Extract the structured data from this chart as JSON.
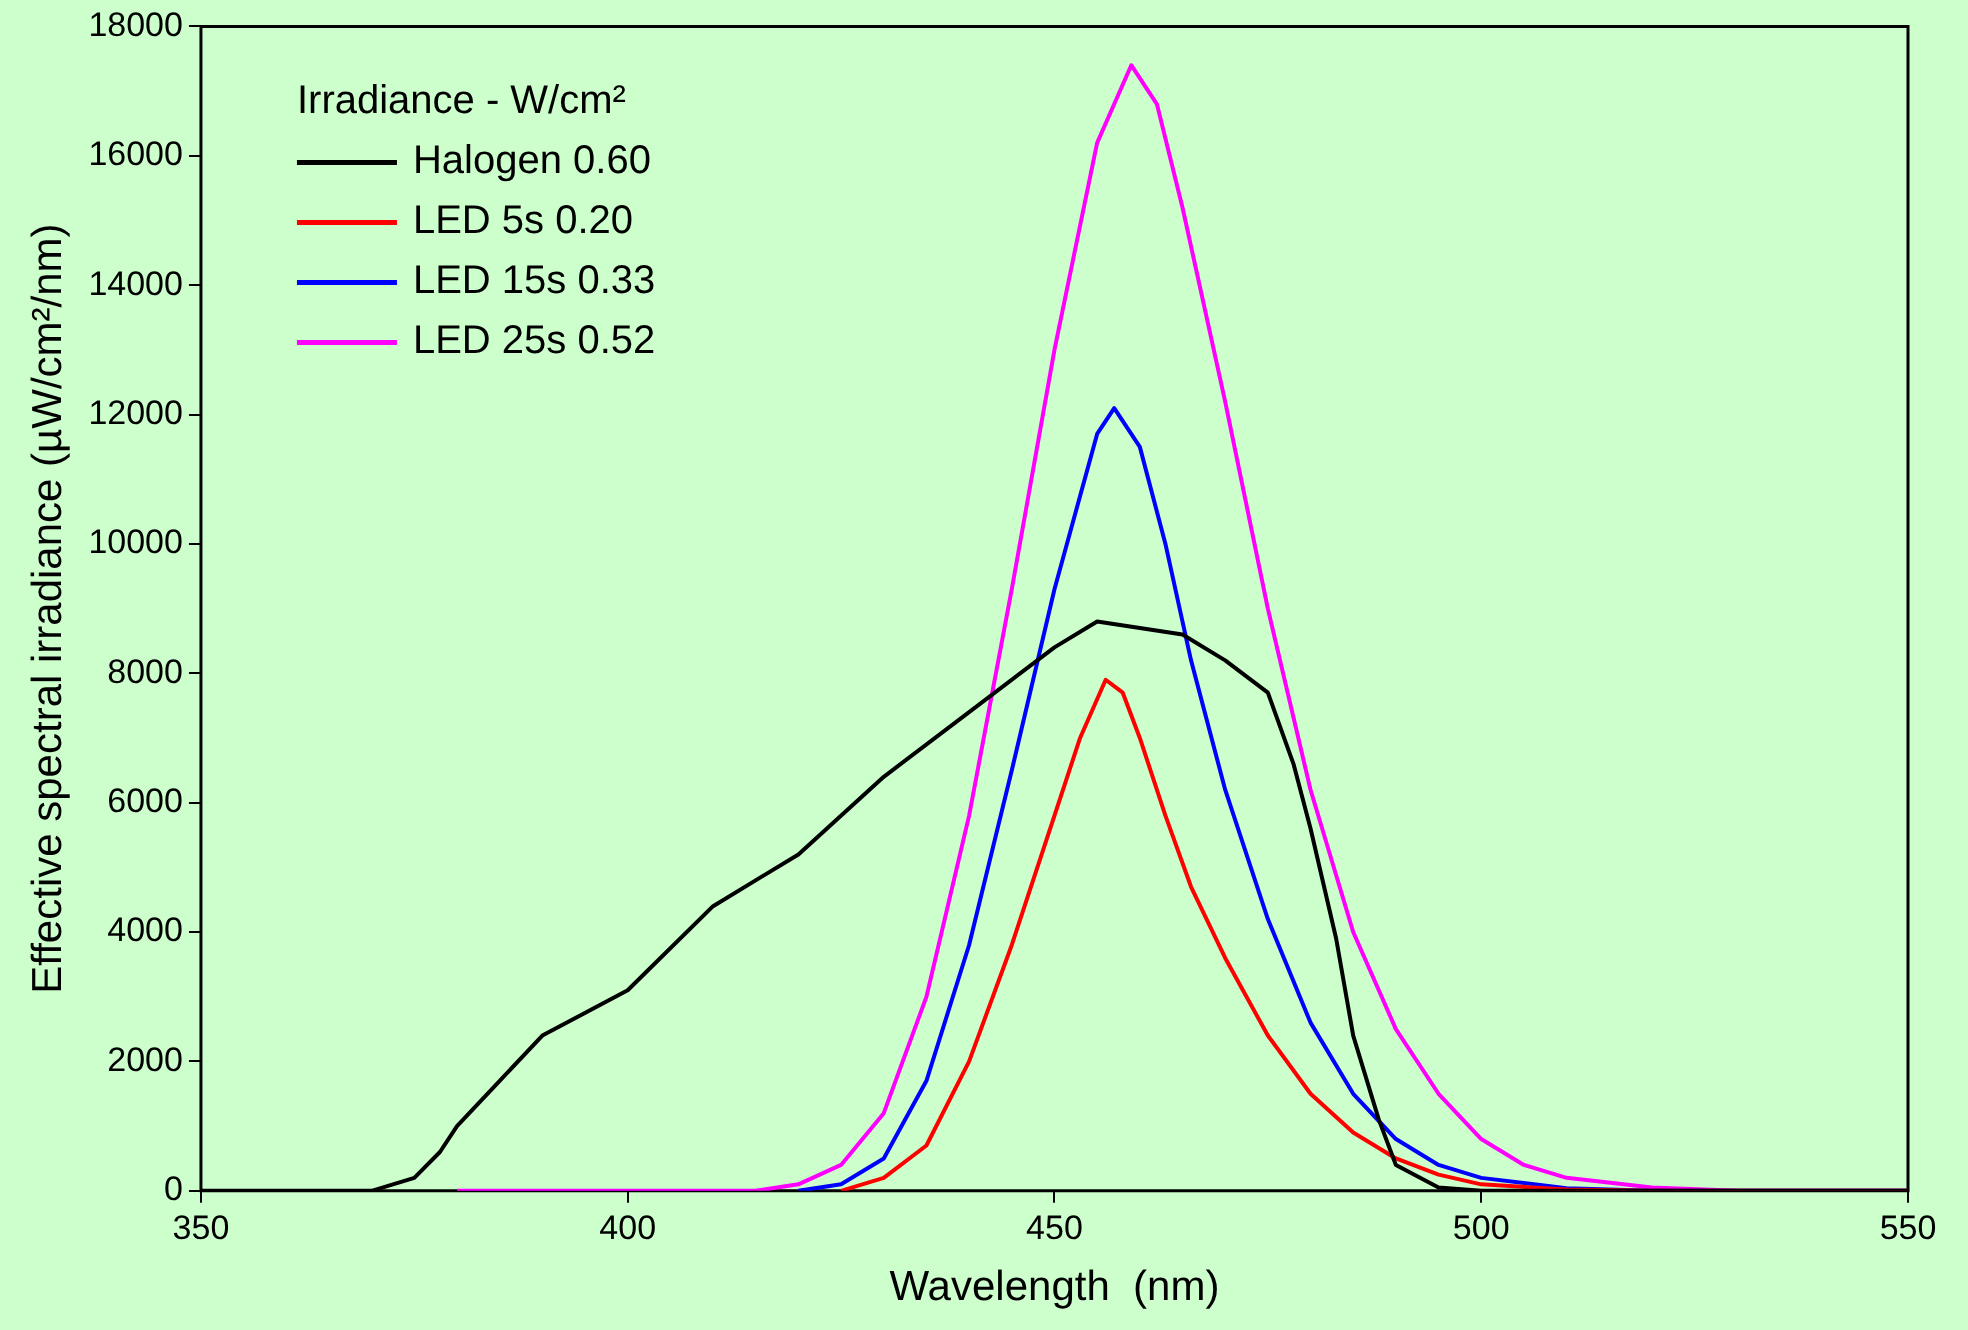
{
  "chart_data": {
    "type": "line",
    "xlabel": "Wavelength  (nm)",
    "ylabel": "Effective spectral irradiance (µW/cm²/nm)",
    "legend_title": "Irradiance - W/cm²",
    "xlim": [
      350,
      550
    ],
    "xticks": [
      350,
      400,
      450,
      500,
      550
    ],
    "ylim": [
      0,
      18000
    ],
    "yticks": [
      0,
      2000,
      4000,
      6000,
      8000,
      10000,
      12000,
      14000,
      16000,
      18000
    ],
    "grid": false,
    "legend": "top left",
    "marker": "none",
    "line_style": "solid",
    "series": [
      {
        "name": "Halogen 0.60",
        "color": "#000000",
        "x": [
          350,
          360,
          370,
          375,
          378,
          380,
          385,
          390,
          400,
          410,
          420,
          430,
          440,
          450,
          455,
          460,
          465,
          470,
          475,
          478,
          480,
          483,
          485,
          488,
          490,
          495,
          500,
          550
        ],
        "values": [
          0,
          0,
          0,
          200,
          600,
          1000,
          1700,
          2400,
          3100,
          4400,
          5200,
          6400,
          7400,
          8400,
          8800,
          8700,
          8600,
          8200,
          7700,
          6600,
          5600,
          3900,
          2400,
          1100,
          400,
          50,
          0,
          0
        ]
      },
      {
        "name": "LED 5s 0.20",
        "color": "#ff0000",
        "x": [
          425,
          430,
          435,
          440,
          445,
          450,
          453,
          456,
          458,
          460,
          463,
          466,
          470,
          475,
          480,
          485,
          490,
          495,
          500,
          510,
          520,
          550
        ],
        "values": [
          0,
          200,
          700,
          2000,
          3800,
          5800,
          7000,
          7900,
          7700,
          7000,
          5800,
          4700,
          3600,
          2400,
          1500,
          900,
          500,
          250,
          100,
          20,
          0,
          0
        ]
      },
      {
        "name": "LED 15s 0.33",
        "color": "#0000ff",
        "x": [
          420,
          425,
          430,
          435,
          440,
          445,
          450,
          455,
          457,
          460,
          463,
          466,
          470,
          475,
          480,
          485,
          490,
          495,
          500,
          510,
          520,
          550
        ],
        "values": [
          0,
          100,
          500,
          1700,
          3800,
          6500,
          9300,
          11700,
          12100,
          11500,
          10000,
          8200,
          6200,
          4200,
          2600,
          1500,
          800,
          400,
          200,
          40,
          0,
          0
        ]
      },
      {
        "name": "LED 25s 0.52",
        "color": "#ff00ff",
        "x": [
          380,
          415,
          420,
          425,
          430,
          435,
          440,
          445,
          450,
          455,
          459,
          462,
          465,
          470,
          475,
          480,
          485,
          490,
          495,
          500,
          505,
          510,
          520,
          530,
          550
        ],
        "values": [
          0,
          0,
          100,
          400,
          1200,
          3000,
          5800,
          9300,
          13000,
          16200,
          17400,
          16800,
          15200,
          12200,
          9000,
          6200,
          4000,
          2500,
          1500,
          800,
          400,
          200,
          50,
          0,
          0
        ]
      }
    ]
  }
}
